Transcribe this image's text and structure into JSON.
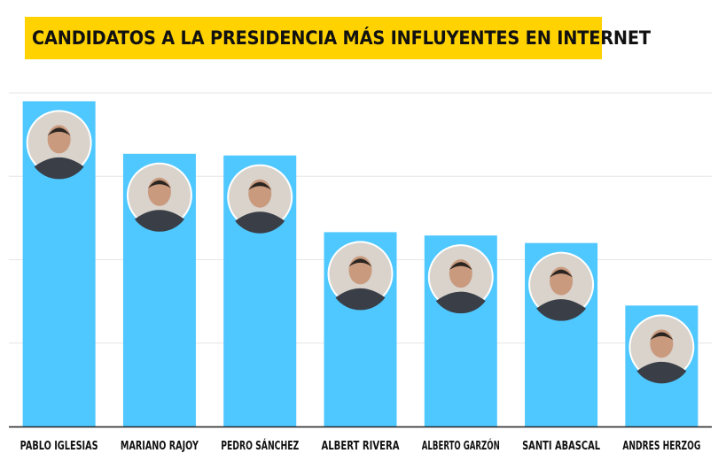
{
  "title": "CANDIDATOS A LA PRESIDENCIA MÁS INFLUYENTES EN INTERNET",
  "colors": {
    "title_background": "#FFD200",
    "bar": "#4FC7FF",
    "grid": "#e6e6e6",
    "axis": "#222222"
  },
  "chart_data": {
    "type": "bar",
    "title": "CANDIDATOS A LA PRESIDENCIA MÁS INFLUYENTES EN INTERNET",
    "categories": [
      "PABLO IGLESIAS",
      "MARIANO RAJOY",
      "PEDRO SÁNCHEZ",
      "ALBERT RIVERA",
      "ALBERTO GARZÓN",
      "SANTI ABASCAL",
      "ANDRES HERZOG"
    ],
    "values": [
      3.9,
      3.27,
      3.25,
      2.33,
      2.29,
      2.2,
      1.45
    ],
    "ylim": [
      0,
      4
    ],
    "grid": true,
    "xlabel": "",
    "ylabel": "",
    "legend": "none",
    "markers": [
      "portrait-avatar",
      "portrait-avatar",
      "portrait-avatar",
      "portrait-avatar",
      "portrait-avatar",
      "portrait-avatar",
      "portrait-avatar"
    ]
  }
}
